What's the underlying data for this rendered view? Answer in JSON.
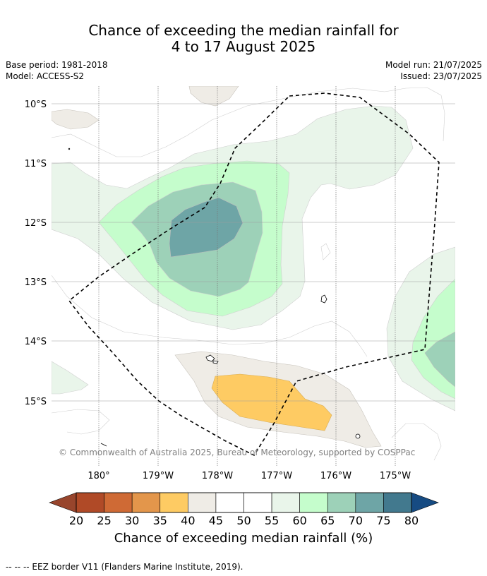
{
  "title": {
    "line1": "Chance of exceeding the median rainfall for",
    "line2": "4 to 17 August 2025"
  },
  "meta": {
    "base_period": "Base period: 1981-2018",
    "model": "Model: ACCESS-S2",
    "model_run": "Model run: 21/07/2025",
    "issued": "Issued: 23/07/2025"
  },
  "map": {
    "lat_labels": [
      "10°S",
      "11°S",
      "12°S",
      "13°S",
      "14°S",
      "15°S"
    ],
    "lon_labels": [
      "180°",
      "179°W",
      "178°W",
      "177°W",
      "176°W",
      "175°W"
    ],
    "credit": "© Commonwealth of Australia 2025, Bureau of Meteorology, supported by COSPPac"
  },
  "colorbar": {
    "ticks": [
      "20",
      "25",
      "30",
      "35",
      "40",
      "45",
      "50",
      "55",
      "60",
      "65",
      "70",
      "75",
      "80"
    ],
    "colors": [
      "#b04a27",
      "#cf6a35",
      "#e3964b",
      "#fecb63",
      "#efece6",
      "#ffffff",
      "#ffffff",
      "#e9f5ea",
      "#c5fdcc",
      "#9dd1b8",
      "#6ea5a6",
      "#42798e"
    ],
    "under_color": "#98452c",
    "over_color": "#164b82",
    "label": "Chance of exceeding median rainfall (%)"
  },
  "footer": {
    "eez_note": "--  --  -- EEZ border V11 (Flanders Marine Institute, 2019)."
  }
}
